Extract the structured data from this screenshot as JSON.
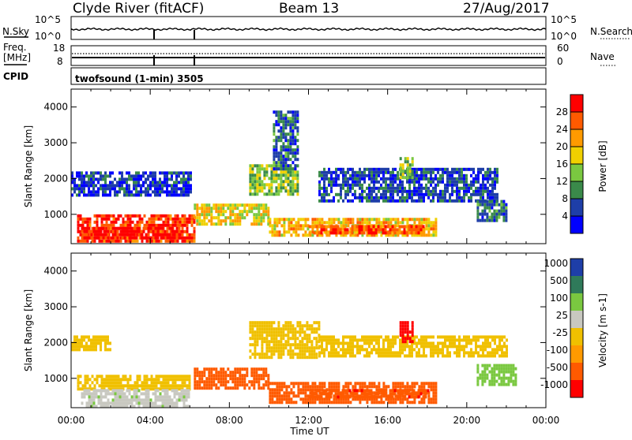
{
  "header": {
    "station": "Clyde River (fitACF)",
    "beam": "Beam 13",
    "date": "27/Aug/2017"
  },
  "noise_panel": {
    "left_label": "N.Sky",
    "right_label": "N.Search",
    "left_ticks": [
      "10^5",
      "10^0"
    ],
    "right_ticks": [
      "10^5",
      "10^0"
    ]
  },
  "freq_panel": {
    "left_label_line1": "Freq.",
    "left_label_line2": "[MHz]",
    "right_label": "Nave",
    "left_ticks": [
      "18",
      "8"
    ],
    "right_ticks": [
      "60",
      "0"
    ]
  },
  "cpid": {
    "label": "CPID",
    "value": "twofsound (1-min) 3505"
  },
  "colors": {
    "power_scale": [
      "#0000ff",
      "#1e3ea8",
      "#3a8a4a",
      "#7ac840",
      "#f0d000",
      "#ff9a00",
      "#ff5a00",
      "#ff0000"
    ],
    "velocity_scale": [
      "#ff0000",
      "#ff5a00",
      "#ff9a00",
      "#f0c000",
      "#c8c8c0",
      "#7ac840",
      "#2f7a5a",
      "#1e3ea8"
    ]
  },
  "chart_data": [
    {
      "type": "heatmap",
      "panel": "power",
      "ylabel": "Slant Range [km]",
      "xlabel": "",
      "x_ticks": [
        "00:00",
        "04:00",
        "08:00",
        "12:00",
        "16:00",
        "20:00",
        "00:00"
      ],
      "x_range_hours": [
        0,
        24
      ],
      "y_ticks": [
        "1000",
        "2000",
        "3000",
        "4000"
      ],
      "y_range_km": [
        180,
        4500
      ],
      "colorbar": {
        "label": "Power [dB]",
        "ticks": [
          "4",
          "8",
          "12",
          "16",
          "20",
          "24",
          "28"
        ],
        "range": [
          0,
          32
        ]
      },
      "blobs": [
        {
          "t0": 0.3,
          "t1": 6.2,
          "r0": 250,
          "r1": 1000,
          "value": 28
        },
        {
          "t0": 0.5,
          "t1": 5.5,
          "r0": 350,
          "r1": 650,
          "value": 31
        },
        {
          "t0": 6.2,
          "t1": 10.0,
          "r0": 700,
          "r1": 1300,
          "value": 18
        },
        {
          "t0": 10.0,
          "t1": 18.5,
          "r0": 400,
          "r1": 900,
          "value": 20
        },
        {
          "t0": 12.0,
          "t1": 17.8,
          "r0": 450,
          "r1": 700,
          "value": 26
        },
        {
          "t0": 9.0,
          "t1": 11.5,
          "r0": 1600,
          "r1": 2400,
          "value": 14
        },
        {
          "t0": 10.2,
          "t1": 11.4,
          "r0": 2300,
          "r1": 3900,
          "value": 8
        },
        {
          "t0": 12.5,
          "t1": 21.5,
          "r0": 1400,
          "r1": 2300,
          "value": 6
        },
        {
          "t0": 16.6,
          "t1": 17.2,
          "r0": 2000,
          "r1": 2600,
          "value": 14
        },
        {
          "t0": 20.5,
          "t1": 22.0,
          "r0": 800,
          "r1": 1400,
          "value": 8
        },
        {
          "t0": 0.0,
          "t1": 6.0,
          "r0": 1500,
          "r1": 2200,
          "value": 5
        }
      ]
    },
    {
      "type": "heatmap",
      "panel": "velocity",
      "ylabel": "Slant Range [km]",
      "xlabel": "Time UT",
      "x_ticks": [
        "00:00",
        "04:00",
        "08:00",
        "12:00",
        "16:00",
        "20:00",
        "00:00"
      ],
      "x_range_hours": [
        0,
        24
      ],
      "y_ticks": [
        "1000",
        "2000",
        "3000",
        "4000"
      ],
      "y_range_km": [
        180,
        4500
      ],
      "colorbar": {
        "label": "Velocity [m s-1]",
        "ticks": [
          "1000",
          "500",
          "100",
          "25",
          "-25",
          "-100",
          "-500",
          "-1000"
        ]
      },
      "blobs": [
        {
          "t0": 0.3,
          "t1": 6.0,
          "r0": 700,
          "r1": 1100,
          "value": 0
        },
        {
          "t0": 0.5,
          "t1": 6.0,
          "r0": 250,
          "r1": 700,
          "value": 80
        },
        {
          "t0": 6.2,
          "t1": 10.0,
          "r0": 700,
          "r1": 1300,
          "value": -300
        },
        {
          "t0": 10.0,
          "t1": 18.5,
          "r0": 350,
          "r1": 900,
          "value": -200
        },
        {
          "t0": 12.0,
          "t1": 18.0,
          "r0": 450,
          "r1": 700,
          "value": -400
        },
        {
          "t0": 9.0,
          "t1": 12.5,
          "r0": 1600,
          "r1": 2600,
          "value": 0
        },
        {
          "t0": 12.5,
          "t1": 22.0,
          "r0": 1600,
          "r1": 2200,
          "value": 0
        },
        {
          "t0": 16.6,
          "t1": 17.2,
          "r0": 2000,
          "r1": 2600,
          "value": -800
        },
        {
          "t0": 20.5,
          "t1": 22.5,
          "r0": 800,
          "r1": 1400,
          "value": 200
        },
        {
          "t0": 0.0,
          "t1": 2.0,
          "r0": 1800,
          "r1": 2200,
          "value": 0
        }
      ]
    }
  ]
}
